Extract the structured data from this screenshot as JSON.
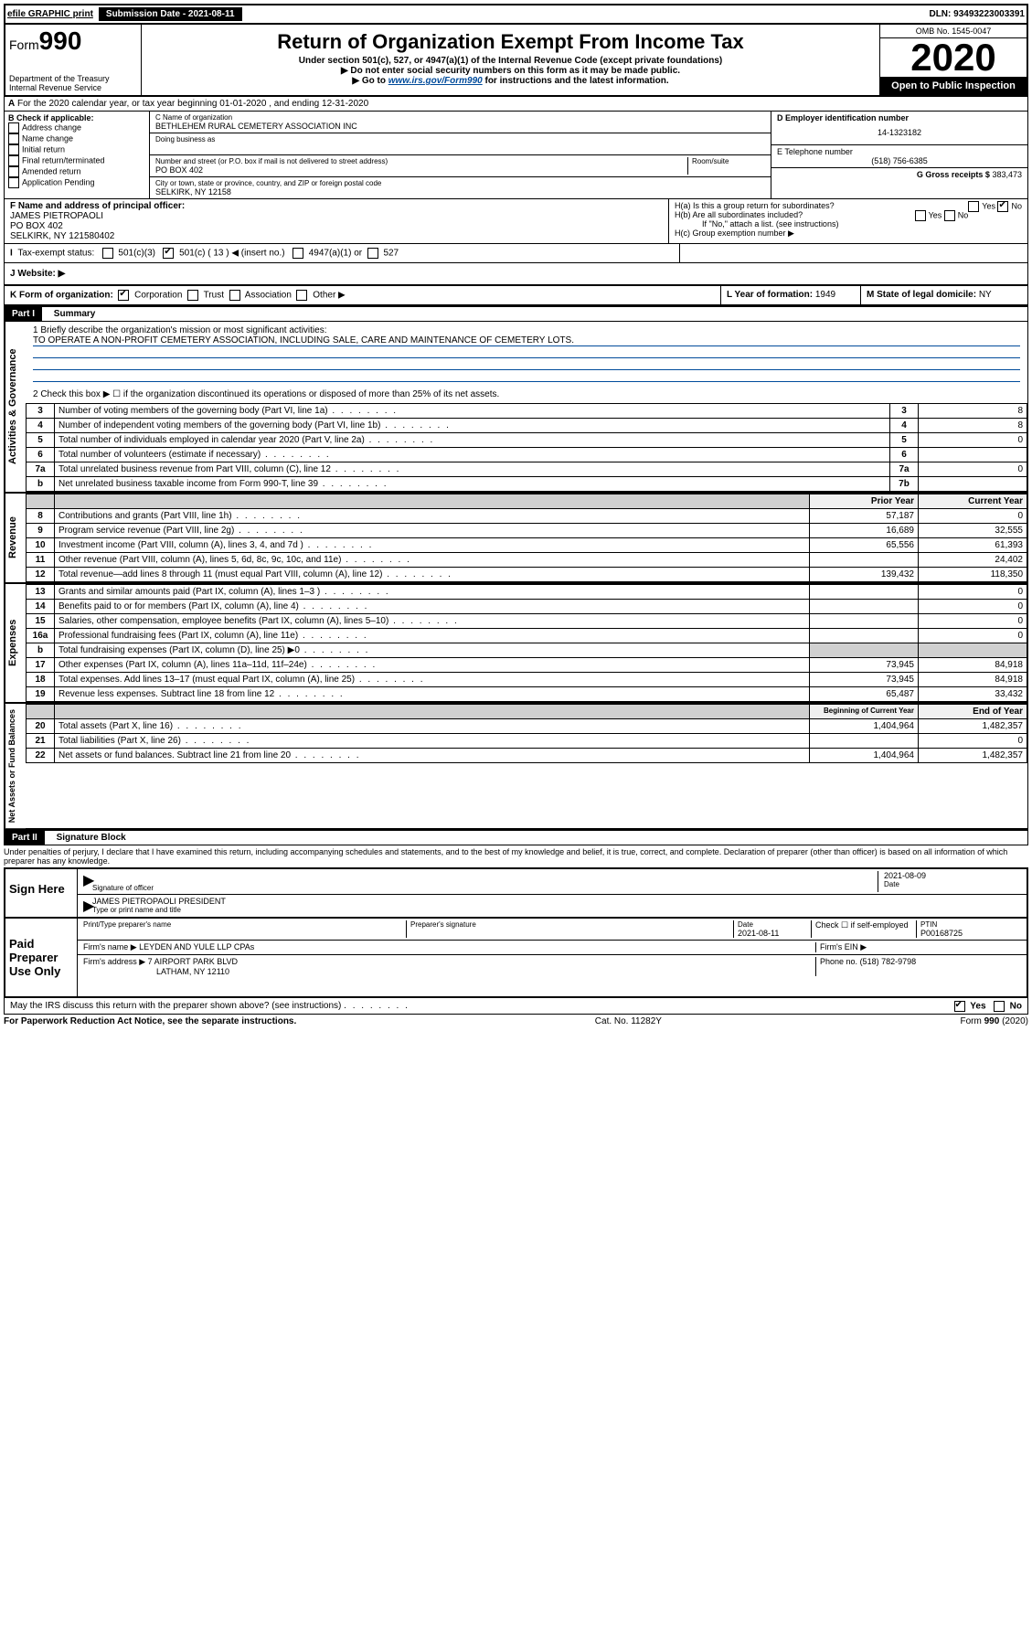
{
  "topbar": {
    "efile": "efile GRAPHIC print",
    "submission_label": "Submission Date - 2021-08-11",
    "dln": "DLN: 93493223003391"
  },
  "header": {
    "form_prefix": "Form",
    "form_number": "990",
    "dept": "Department of the Treasury",
    "irs": "Internal Revenue Service",
    "title": "Return of Organization Exempt From Income Tax",
    "subtitle": "Under section 501(c), 527, or 4947(a)(1) of the Internal Revenue Code (except private foundations)",
    "note1": "▶ Do not enter social security numbers on this form as it may be made public.",
    "note2_pre": "▶ Go to ",
    "note2_link": "www.irs.gov/Form990",
    "note2_post": " for instructions and the latest information.",
    "omb": "OMB No. 1545-0047",
    "year": "2020",
    "open": "Open to Public Inspection"
  },
  "sectionA": {
    "line": "For the 2020 calendar year, or tax year beginning 01-01-2020   , and ending 12-31-2020"
  },
  "boxB": {
    "title": "B Check if applicable:",
    "items": [
      "Address change",
      "Name change",
      "Initial return",
      "Final return/terminated",
      "Amended return",
      "Application Pending"
    ]
  },
  "boxC": {
    "name_label": "C Name of organization",
    "name": "BETHLEHEM RURAL CEMETERY ASSOCIATION INC",
    "dba_label": "Doing business as",
    "addr_label": "Number and street (or P.O. box if mail is not delivered to street address)",
    "addr": "PO BOX 402",
    "room_label": "Room/suite",
    "city_label": "City or town, state or province, country, and ZIP or foreign postal code",
    "city": "SELKIRK, NY  12158"
  },
  "boxD": {
    "label": "D Employer identification number",
    "value": "14-1323182"
  },
  "boxE": {
    "label": "E Telephone number",
    "value": "(518) 756-6385"
  },
  "boxG": {
    "label": "G Gross receipts $",
    "value": "383,473"
  },
  "boxF": {
    "label": "F  Name and address of principal officer:",
    "name": "JAMES PIETROPAOLI",
    "addr1": "PO BOX 402",
    "addr2": "SELKIRK, NY  121580402"
  },
  "boxH": {
    "a": "H(a)  Is this a group return for subordinates?",
    "b": "H(b)  Are all subordinates included?",
    "note": "If \"No,\" attach a list. (see instructions)",
    "c": "H(c)  Group exemption number ▶"
  },
  "boxI": {
    "label": "Tax-exempt status:",
    "v501c3": "501(c)(3)",
    "v501c": "501(c) ( 13 ) ◀ (insert no.)",
    "v4947": "4947(a)(1) or",
    "v527": "527"
  },
  "boxJ": {
    "label": "J    Website: ▶"
  },
  "boxK": {
    "label": "K Form of organization:",
    "corp": "Corporation",
    "trust": "Trust",
    "assoc": "Association",
    "other": "Other ▶"
  },
  "boxL": {
    "label": "L Year of formation:",
    "value": "1949"
  },
  "boxM": {
    "label": "M State of legal domicile:",
    "value": "NY"
  },
  "part1": {
    "title": "Part I",
    "heading": "Summary",
    "line1_label": "1  Briefly describe the organization's mission or most significant activities:",
    "mission": "TO OPERATE A NON-PROFIT CEMETERY ASSOCIATION, INCLUDING SALE, CARE AND MAINTENANCE OF CEMETERY LOTS.",
    "line2": "2   Check this box ▶ ☐  if the organization discontinued its operations or disposed of more than 25% of its net assets.",
    "gov_rows": [
      {
        "n": "3",
        "d": "Number of voting members of the governing body (Part VI, line 1a)",
        "b": "3",
        "v": "8"
      },
      {
        "n": "4",
        "d": "Number of independent voting members of the governing body (Part VI, line 1b)",
        "b": "4",
        "v": "8"
      },
      {
        "n": "5",
        "d": "Total number of individuals employed in calendar year 2020 (Part V, line 2a)",
        "b": "5",
        "v": "0"
      },
      {
        "n": "6",
        "d": "Total number of volunteers (estimate if necessary)",
        "b": "6",
        "v": ""
      },
      {
        "n": "7a",
        "d": "Total unrelated business revenue from Part VIII, column (C), line 12",
        "b": "7a",
        "v": "0"
      },
      {
        "n": "b",
        "d": "Net unrelated business taxable income from Form 990-T, line 39",
        "b": "7b",
        "v": ""
      }
    ],
    "col_prior": "Prior Year",
    "col_current": "Current Year",
    "rev_rows": [
      {
        "n": "8",
        "d": "Contributions and grants (Part VIII, line 1h)",
        "p": "57,187",
        "c": "0"
      },
      {
        "n": "9",
        "d": "Program service revenue (Part VIII, line 2g)",
        "p": "16,689",
        "c": "32,555"
      },
      {
        "n": "10",
        "d": "Investment income (Part VIII, column (A), lines 3, 4, and 7d )",
        "p": "65,556",
        "c": "61,393"
      },
      {
        "n": "11",
        "d": "Other revenue (Part VIII, column (A), lines 5, 6d, 8c, 9c, 10c, and 11e)",
        "p": "",
        "c": "24,402"
      },
      {
        "n": "12",
        "d": "Total revenue—add lines 8 through 11 (must equal Part VIII, column (A), line 12)",
        "p": "139,432",
        "c": "118,350"
      }
    ],
    "exp_rows": [
      {
        "n": "13",
        "d": "Grants and similar amounts paid (Part IX, column (A), lines 1–3 )",
        "p": "",
        "c": "0"
      },
      {
        "n": "14",
        "d": "Benefits paid to or for members (Part IX, column (A), line 4)",
        "p": "",
        "c": "0"
      },
      {
        "n": "15",
        "d": "Salaries, other compensation, employee benefits (Part IX, column (A), lines 5–10)",
        "p": "",
        "c": "0"
      },
      {
        "n": "16a",
        "d": "Professional fundraising fees (Part IX, column (A), line 11e)",
        "p": "",
        "c": "0"
      },
      {
        "n": "b",
        "d": "Total fundraising expenses (Part IX, column (D), line 25) ▶0",
        "p": "GRAY",
        "c": "GRAY"
      },
      {
        "n": "17",
        "d": "Other expenses (Part IX, column (A), lines 11a–11d, 11f–24e)",
        "p": "73,945",
        "c": "84,918"
      },
      {
        "n": "18",
        "d": "Total expenses. Add lines 13–17 (must equal Part IX, column (A), line 25)",
        "p": "73,945",
        "c": "84,918"
      },
      {
        "n": "19",
        "d": "Revenue less expenses. Subtract line 18 from line 12",
        "p": "65,487",
        "c": "33,432"
      }
    ],
    "col_begin": "Beginning of Current Year",
    "col_end": "End of Year",
    "net_rows": [
      {
        "n": "20",
        "d": "Total assets (Part X, line 16)",
        "p": "1,404,964",
        "c": "1,482,357"
      },
      {
        "n": "21",
        "d": "Total liabilities (Part X, line 26)",
        "p": "",
        "c": "0"
      },
      {
        "n": "22",
        "d": "Net assets or fund balances. Subtract line 21 from line 20",
        "p": "1,404,964",
        "c": "1,482,357"
      }
    ]
  },
  "part2": {
    "title": "Part II",
    "heading": "Signature Block",
    "perjury": "Under penalties of perjury, I declare that I have examined this return, including accompanying schedules and statements, and to the best of my knowledge and belief, it is true, correct, and complete. Declaration of preparer (other than officer) is based on all information of which preparer has any knowledge.",
    "sign_here": "Sign Here",
    "sig_officer": "Signature of officer",
    "sig_date": "2021-08-09",
    "date_label": "Date",
    "officer_name": "JAMES PIETROPAOLI  PRESIDENT",
    "type_label": "Type or print name and title",
    "paid": "Paid Preparer Use Only",
    "prep_name_label": "Print/Type preparer's name",
    "prep_sig_label": "Preparer's signature",
    "prep_date_label": "Date",
    "prep_date": "2021-08-11",
    "check_self": "Check ☐ if self-employed",
    "ptin_label": "PTIN",
    "ptin": "P00168725",
    "firm_name_label": "Firm's name      ▶",
    "firm_name": "LEYDEN AND YULE LLP CPAs",
    "firm_ein_label": "Firm's EIN ▶",
    "firm_addr_label": "Firm's address ▶",
    "firm_addr1": "7 AIRPORT PARK BLVD",
    "firm_addr2": "LATHAM, NY  12110",
    "phone_label": "Phone no.",
    "phone": "(518) 782-9798",
    "discuss": "May the IRS discuss this return with the preparer shown above? (see instructions)",
    "yes": "Yes",
    "no": "No"
  },
  "footer": {
    "left": "For Paperwork Reduction Act Notice, see the separate instructions.",
    "mid": "Cat. No. 11282Y",
    "right": "Form 990 (2020)"
  },
  "side_labels": {
    "gov": "Activities & Governance",
    "rev": "Revenue",
    "exp": "Expenses",
    "net": "Net Assets or Fund Balances"
  }
}
